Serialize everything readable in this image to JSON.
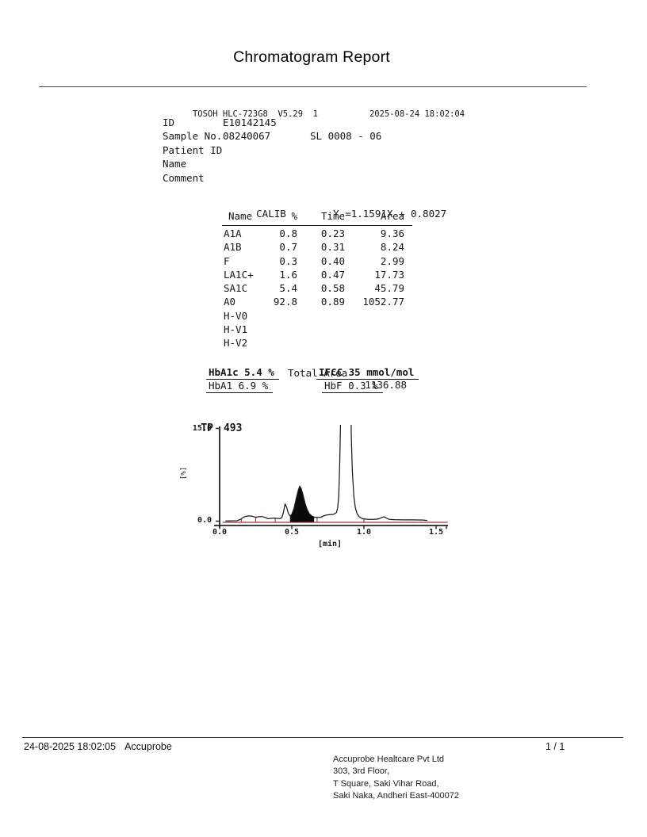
{
  "title": "Chromatogram Report",
  "device": {
    "model_line": "TOSOH HLC-723G8  V5.29  1",
    "datetime": "2025-08-24 18:02:04"
  },
  "info_rows": [
    {
      "label": "ID",
      "value": "E10142145",
      "extra": ""
    },
    {
      "label": "Sample No.",
      "value": "08240067",
      "extra": "SL 0008 - 06"
    },
    {
      "label": "Patient ID",
      "value": "",
      "extra": ""
    },
    {
      "label": "Name",
      "value": "",
      "extra": ""
    },
    {
      "label": "Comment",
      "value": "",
      "extra": ""
    }
  ],
  "calib": {
    "label": "CALIB",
    "equation": "Y =1.1591X + 0.8027"
  },
  "peak_table": {
    "headers": [
      "Name",
      "%",
      "Time",
      "Area"
    ],
    "rows": [
      [
        "A1A",
        "0.8",
        "0.23",
        "9.36"
      ],
      [
        "A1B",
        "0.7",
        "0.31",
        "8.24"
      ],
      [
        "F",
        "0.3",
        "0.40",
        "2.99"
      ],
      [
        "LA1C+",
        "1.6",
        "0.47",
        "17.73"
      ],
      [
        "SA1C",
        "5.4",
        "0.58",
        "45.79"
      ],
      [
        "A0",
        "92.8",
        "0.89",
        "1052.77"
      ],
      [
        "H-V0",
        "",
        "",
        ""
      ],
      [
        "H-V1",
        "",
        "",
        ""
      ],
      [
        "H-V2",
        "",
        "",
        ""
      ]
    ],
    "total_label": "Total Area",
    "total_value": "1136.88"
  },
  "results": {
    "hba1c": "HbA1c 5.4 %",
    "ifcc": "IFCC 35 mmol/mol",
    "hba1": "HbA1 6.9 %",
    "hbf": "HbF 0.3 %"
  },
  "chart": {
    "tp_label": "TP",
    "tp_value": "493",
    "y_max_label": "15.0",
    "y_min_label": "0.0",
    "y_axis_label": "[%]",
    "x_tick_labels": [
      "0.0",
      "0.5",
      "1.0",
      "1.5"
    ],
    "x_axis_label": "[min]",
    "trace_color": "#1a1a1a",
    "baseline_color": "#a23535"
  },
  "chart_data": {
    "type": "line",
    "description": "HPLC chromatogram, detector response [%] vs elution time [min]; large A0 peak clipped at 15.0; SA1C (HbA1c) peak filled black",
    "xlabel": "[min]",
    "ylabel": "[%]",
    "xlim": [
      0,
      1.6
    ],
    "ylim": [
      0,
      15
    ],
    "x_ticks": [
      0.0,
      0.5,
      1.0,
      1.5
    ],
    "y_ticks": [
      0.0,
      15.0
    ],
    "total_peaks": "TP 493",
    "trace": [
      [
        0.04,
        0.03
      ],
      [
        0.12,
        0.06
      ],
      [
        0.145,
        0.3
      ],
      [
        0.17,
        0.7
      ],
      [
        0.2,
        0.85
      ],
      [
        0.225,
        0.8
      ],
      [
        0.25,
        0.62
      ],
      [
        0.27,
        0.72
      ],
      [
        0.295,
        0.75
      ],
      [
        0.315,
        0.6
      ],
      [
        0.335,
        0.4
      ],
      [
        0.355,
        0.45
      ],
      [
        0.38,
        0.5
      ],
      [
        0.4,
        0.45
      ],
      [
        0.42,
        0.42
      ],
      [
        0.432,
        0.6
      ],
      [
        0.443,
        1.5
      ],
      [
        0.454,
        2.8
      ],
      [
        0.465,
        2.2
      ],
      [
        0.476,
        1.3
      ],
      [
        0.484,
        0.95
      ],
      [
        0.49,
        0.85
      ],
      [
        0.5,
        1.1
      ],
      [
        0.515,
        2.0
      ],
      [
        0.53,
        3.6
      ],
      [
        0.545,
        5.0
      ],
      [
        0.555,
        5.65
      ],
      [
        0.565,
        5.3
      ],
      [
        0.578,
        4.2
      ],
      [
        0.592,
        2.9
      ],
      [
        0.606,
        1.9
      ],
      [
        0.62,
        1.25
      ],
      [
        0.635,
        0.9
      ],
      [
        0.65,
        0.7
      ],
      [
        0.655,
        0.65
      ],
      [
        0.67,
        0.62
      ],
      [
        0.685,
        0.6
      ],
      [
        0.7,
        0.62
      ],
      [
        0.72,
        0.85
      ],
      [
        0.74,
        1.0
      ],
      [
        0.765,
        1.05
      ],
      [
        0.79,
        1.1
      ],
      [
        0.81,
        1.4
      ],
      [
        0.818,
        2.2
      ],
      [
        0.825,
        4.0
      ],
      [
        0.832,
        9.0
      ],
      [
        0.838,
        16.0
      ],
      [
        0.848,
        40.0
      ],
      [
        0.858,
        70.0
      ],
      [
        0.87,
        85.0
      ],
      [
        0.882,
        88.0
      ],
      [
        0.895,
        70.0
      ],
      [
        0.905,
        30.0
      ],
      [
        0.912,
        14.0
      ],
      [
        0.92,
        8.0
      ],
      [
        0.93,
        4.0
      ],
      [
        0.94,
        2.2
      ],
      [
        0.952,
        1.2
      ],
      [
        0.968,
        0.7
      ],
      [
        0.985,
        0.45
      ],
      [
        1.0,
        0.35
      ],
      [
        1.03,
        0.28
      ],
      [
        1.07,
        0.28
      ],
      [
        1.1,
        0.35
      ],
      [
        1.125,
        0.6
      ],
      [
        1.14,
        0.7
      ],
      [
        1.155,
        0.5
      ],
      [
        1.175,
        0.3
      ],
      [
        1.21,
        0.24
      ],
      [
        1.27,
        0.2
      ],
      [
        1.34,
        0.2
      ],
      [
        1.41,
        0.18
      ],
      [
        1.44,
        0.1
      ]
    ],
    "filled_peak": {
      "name": "SA1C (HbA1c)",
      "points": [
        [
          0.49,
          0.85
        ],
        [
          0.5,
          1.1
        ],
        [
          0.515,
          2.0
        ],
        [
          0.53,
          3.6
        ],
        [
          0.545,
          5.0
        ],
        [
          0.555,
          5.65
        ],
        [
          0.565,
          5.3
        ],
        [
          0.578,
          4.2
        ],
        [
          0.592,
          2.9
        ],
        [
          0.606,
          1.9
        ],
        [
          0.62,
          1.25
        ],
        [
          0.635,
          0.9
        ],
        [
          0.65,
          0.7
        ],
        [
          0.655,
          0.65
        ]
      ]
    },
    "baseline": {
      "y": 0,
      "x_range": [
        0.02,
        1.58
      ],
      "color": "#a23535"
    },
    "peak_markers": [
      [
        0.15,
        0.4
      ],
      [
        0.25,
        0.75
      ],
      [
        0.385,
        0.45
      ],
      [
        0.49,
        0.9
      ],
      [
        0.675,
        0.62
      ],
      [
        1.0,
        0.45
      ]
    ]
  },
  "footer": {
    "timestamp": "24-08-2025 18:02:05",
    "source": "Accuprobe",
    "page": "1 / 1",
    "address_lines": [
      "Accuprobe Healtcare Pvt Ltd",
      "303, 3rd Floor,",
      "T Square, Saki Vihar Road,",
      "Saki Naka, Andheri East-400072"
    ]
  }
}
